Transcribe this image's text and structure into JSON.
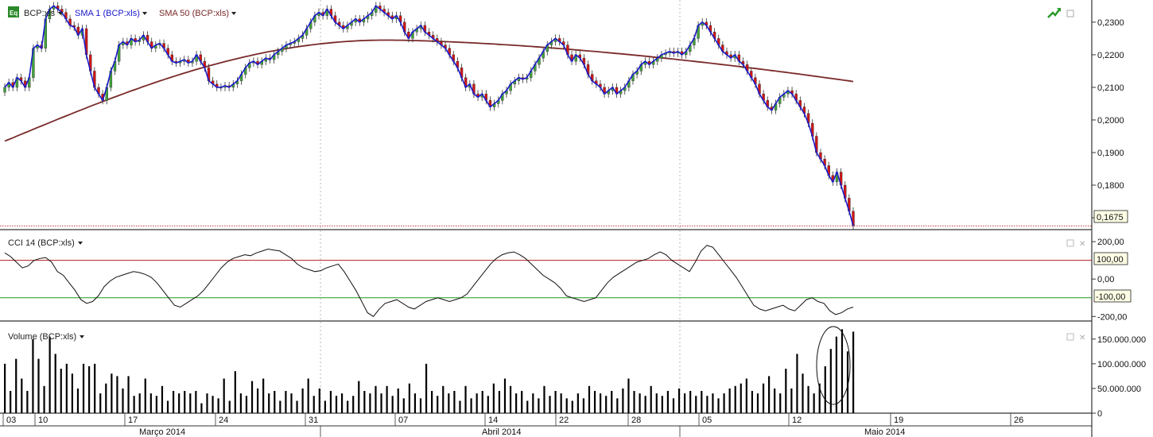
{
  "colors": {
    "up": "#41a33a",
    "down": "#d21414",
    "sma1": "#1a1acc",
    "sma50": "#7a2a2a",
    "cci": "#111111",
    "cci_upper": "#b21e1e",
    "cci_lower": "#1f9a1f",
    "volume": "#000000",
    "last_price_line": "#b21e1e",
    "badge_bg": "#ffffe6"
  },
  "legends": {
    "price_symbol": "BCP:xls",
    "sma1": "SMA 1 (BCP:xls)",
    "sma50": "SMA 50 (BCP:xls)",
    "cci": "CCI 14 (BCP:xls)",
    "volume": "Volume (BCP:xls)",
    "logo": "Eq"
  },
  "badges": {
    "last_price": "0,1675",
    "cci_upper": "100,00",
    "cci_lower": "-100,00"
  },
  "icons": [
    "trend-icon",
    "panel-close-icon",
    "panel-restore-icon",
    "dropdown-arrow-icon"
  ],
  "chart_data": [
    {
      "type": "candlestick",
      "title": "BCP:xls",
      "yticks": [
        "0,2300",
        "0,2200",
        "0,2100",
        "0,2000",
        "0,1900",
        "0,1800",
        "0,1700"
      ],
      "ylim": [
        0.1666,
        0.2368
      ],
      "overlays": [
        "SMA 1 (BCP:xls)",
        "SMA 50 (BCP:xls)"
      ],
      "last_value": 0.1675,
      "sma50_start": 0.1935,
      "sma50_end": 0.2118,
      "candles": [
        [
          0.2085,
          0.21
        ],
        [
          0.21,
          0.2115
        ],
        [
          0.2115,
          0.21
        ],
        [
          0.21,
          0.213
        ],
        [
          0.213,
          0.212
        ],
        [
          0.212,
          0.21
        ],
        [
          0.21,
          0.213
        ],
        [
          0.213,
          0.222
        ],
        [
          0.222,
          0.223
        ],
        [
          0.223,
          0.222
        ],
        [
          0.222,
          0.231
        ],
        [
          0.231,
          0.234
        ],
        [
          0.234,
          0.235
        ],
        [
          0.235,
          0.234
        ],
        [
          0.234,
          0.233
        ],
        [
          0.233,
          0.231
        ],
        [
          0.231,
          0.229
        ],
        [
          0.229,
          0.2285
        ],
        [
          0.2285,
          0.226
        ],
        [
          0.226,
          0.228
        ],
        [
          0.228,
          0.22
        ],
        [
          0.22,
          0.215
        ],
        [
          0.215,
          0.21
        ],
        [
          0.21,
          0.208
        ],
        [
          0.208,
          0.206
        ],
        [
          0.206,
          0.21
        ],
        [
          0.21,
          0.215
        ],
        [
          0.215,
          0.218
        ],
        [
          0.218,
          0.223
        ],
        [
          0.223,
          0.224
        ],
        [
          0.224,
          0.223
        ],
        [
          0.223,
          0.225
        ],
        [
          0.225,
          0.224
        ],
        [
          0.224,
          0.2245
        ],
        [
          0.2245,
          0.226
        ],
        [
          0.226,
          0.224
        ],
        [
          0.224,
          0.222
        ],
        [
          0.222,
          0.223
        ],
        [
          0.223,
          0.2235
        ],
        [
          0.2235,
          0.222
        ],
        [
          0.222,
          0.22
        ],
        [
          0.22,
          0.218
        ],
        [
          0.218,
          0.2175
        ],
        [
          0.2175,
          0.218
        ],
        [
          0.218,
          0.2185
        ],
        [
          0.2185,
          0.2175
        ],
        [
          0.2175,
          0.218
        ],
        [
          0.218,
          0.22
        ],
        [
          0.22,
          0.218
        ],
        [
          0.218,
          0.216
        ],
        [
          0.216,
          0.212
        ],
        [
          0.212,
          0.211
        ],
        [
          0.211,
          0.21
        ],
        [
          0.21,
          0.21
        ],
        [
          0.21,
          0.2105
        ],
        [
          0.2105,
          0.21
        ],
        [
          0.21,
          0.211
        ],
        [
          0.211,
          0.212
        ],
        [
          0.212,
          0.214
        ],
        [
          0.214,
          0.216
        ],
        [
          0.216,
          0.2175
        ],
        [
          0.2175,
          0.218
        ],
        [
          0.218,
          0.217
        ],
        [
          0.217,
          0.218
        ],
        [
          0.218,
          0.219
        ],
        [
          0.219,
          0.2185
        ],
        [
          0.2185,
          0.22
        ],
        [
          0.22,
          0.221
        ],
        [
          0.221,
          0.222
        ],
        [
          0.222,
          0.223
        ],
        [
          0.223,
          0.2235
        ],
        [
          0.2235,
          0.224
        ],
        [
          0.224,
          0.225
        ],
        [
          0.225,
          0.226
        ],
        [
          0.226,
          0.228
        ],
        [
          0.228,
          0.23
        ],
        [
          0.23,
          0.232
        ],
        [
          0.232,
          0.233
        ],
        [
          0.233,
          0.232
        ],
        [
          0.232,
          0.234
        ],
        [
          0.234,
          0.232
        ],
        [
          0.232,
          0.23
        ],
        [
          0.23,
          0.229
        ],
        [
          0.229,
          0.228
        ],
        [
          0.228,
          0.229
        ],
        [
          0.229,
          0.23
        ],
        [
          0.23,
          0.231
        ],
        [
          0.231,
          0.23
        ],
        [
          0.23,
          0.231
        ],
        [
          0.231,
          0.232
        ],
        [
          0.232,
          0.233
        ],
        [
          0.233,
          0.235
        ],
        [
          0.235,
          0.234
        ],
        [
          0.234,
          0.233
        ],
        [
          0.233,
          0.232
        ],
        [
          0.232,
          0.231
        ],
        [
          0.231,
          0.232
        ],
        [
          0.232,
          0.23
        ],
        [
          0.23,
          0.227
        ],
        [
          0.227,
          0.225
        ],
        [
          0.225,
          0.227
        ],
        [
          0.227,
          0.228
        ],
        [
          0.228,
          0.229
        ],
        [
          0.229,
          0.227
        ],
        [
          0.227,
          0.226
        ],
        [
          0.226,
          0.225
        ],
        [
          0.225,
          0.224
        ],
        [
          0.224,
          0.223
        ],
        [
          0.223,
          0.222
        ],
        [
          0.222,
          0.22
        ],
        [
          0.22,
          0.218
        ],
        [
          0.218,
          0.216
        ],
        [
          0.216,
          0.213
        ],
        [
          0.213,
          0.21
        ],
        [
          0.21,
          0.211
        ],
        [
          0.211,
          0.208
        ],
        [
          0.208,
          0.207
        ],
        [
          0.207,
          0.208
        ],
        [
          0.208,
          0.206
        ],
        [
          0.206,
          0.204
        ],
        [
          0.204,
          0.205
        ],
        [
          0.205,
          0.206
        ],
        [
          0.206,
          0.208
        ],
        [
          0.208,
          0.209
        ],
        [
          0.209,
          0.211
        ],
        [
          0.211,
          0.212
        ],
        [
          0.212,
          0.213
        ],
        [
          0.213,
          0.2125
        ],
        [
          0.2125,
          0.213
        ],
        [
          0.213,
          0.215
        ],
        [
          0.215,
          0.217
        ],
        [
          0.217,
          0.219
        ],
        [
          0.219,
          0.221
        ],
        [
          0.221,
          0.223
        ],
        [
          0.223,
          0.224
        ],
        [
          0.224,
          0.225
        ],
        [
          0.225,
          0.224
        ],
        [
          0.224,
          0.223
        ],
        [
          0.223,
          0.22
        ],
        [
          0.22,
          0.218
        ],
        [
          0.218,
          0.22
        ],
        [
          0.22,
          0.219
        ],
        [
          0.219,
          0.217
        ],
        [
          0.217,
          0.214
        ],
        [
          0.214,
          0.212
        ],
        [
          0.212,
          0.211
        ],
        [
          0.211,
          0.21
        ],
        [
          0.21,
          0.208
        ],
        [
          0.208,
          0.209
        ],
        [
          0.209,
          0.21
        ],
        [
          0.21,
          0.208
        ],
        [
          0.208,
          0.209
        ],
        [
          0.209,
          0.21
        ],
        [
          0.21,
          0.212
        ],
        [
          0.212,
          0.214
        ],
        [
          0.214,
          0.215
        ],
        [
          0.215,
          0.217
        ],
        [
          0.217,
          0.218
        ],
        [
          0.218,
          0.217
        ],
        [
          0.217,
          0.218
        ],
        [
          0.218,
          0.219
        ],
        [
          0.219,
          0.22
        ],
        [
          0.22,
          0.2205
        ],
        [
          0.2205,
          0.221
        ],
        [
          0.221,
          0.2205
        ],
        [
          0.2205,
          0.221
        ],
        [
          0.221,
          0.22
        ],
        [
          0.22,
          0.221
        ],
        [
          0.221,
          0.223
        ],
        [
          0.223,
          0.225
        ],
        [
          0.225,
          0.229
        ],
        [
          0.229,
          0.23
        ],
        [
          0.23,
          0.229
        ],
        [
          0.229,
          0.227
        ],
        [
          0.227,
          0.225
        ],
        [
          0.225,
          0.223
        ],
        [
          0.223,
          0.221
        ],
        [
          0.221,
          0.22
        ],
        [
          0.22,
          0.219
        ],
        [
          0.219,
          0.22
        ],
        [
          0.22,
          0.218
        ],
        [
          0.218,
          0.217
        ],
        [
          0.217,
          0.215
        ],
        [
          0.215,
          0.213
        ],
        [
          0.213,
          0.211
        ],
        [
          0.211,
          0.208
        ],
        [
          0.208,
          0.206
        ],
        [
          0.206,
          0.204
        ],
        [
          0.204,
          0.203
        ],
        [
          0.203,
          0.205
        ],
        [
          0.205,
          0.207
        ],
        [
          0.207,
          0.208
        ],
        [
          0.208,
          0.209
        ],
        [
          0.209,
          0.208
        ],
        [
          0.208,
          0.206
        ],
        [
          0.206,
          0.204
        ],
        [
          0.204,
          0.202
        ],
        [
          0.202,
          0.199
        ],
        [
          0.199,
          0.195
        ],
        [
          0.195,
          0.19
        ],
        [
          0.19,
          0.188
        ],
        [
          0.188,
          0.186
        ],
        [
          0.186,
          0.183
        ],
        [
          0.183,
          0.181
        ],
        [
          0.181,
          0.184
        ],
        [
          0.184,
          0.18
        ],
        [
          0.18,
          0.176
        ],
        [
          0.176,
          0.172
        ],
        [
          0.172,
          0.1675
        ]
      ]
    },
    {
      "type": "line",
      "title": "CCI 14 (BCP:xls)",
      "yticks": [
        "200,00",
        "0,00",
        "-200,00"
      ],
      "ylim": [
        -220,
        260
      ],
      "levels": [
        100,
        -100
      ],
      "values": [
        140,
        120,
        90,
        60,
        70,
        100,
        110,
        115,
        90,
        40,
        20,
        -20,
        -60,
        -110,
        -130,
        -120,
        -90,
        -40,
        -10,
        10,
        20,
        30,
        40,
        35,
        25,
        10,
        -20,
        -60,
        -100,
        -140,
        -150,
        -130,
        -110,
        -90,
        -60,
        -20,
        20,
        60,
        90,
        110,
        120,
        130,
        125,
        140,
        150,
        160,
        155,
        150,
        130,
        110,
        80,
        60,
        50,
        40,
        45,
        60,
        70,
        80,
        40,
        -10,
        -60,
        -120,
        -180,
        -200,
        -160,
        -130,
        -120,
        -110,
        -130,
        -150,
        -160,
        -140,
        -120,
        -110,
        -100,
        -110,
        -120,
        -110,
        -100,
        -80,
        -40,
        0,
        40,
        80,
        110,
        130,
        140,
        145,
        130,
        110,
        80,
        50,
        20,
        0,
        -20,
        -50,
        -90,
        -100,
        -110,
        -120,
        -110,
        -100,
        -60,
        -20,
        10,
        30,
        50,
        70,
        90,
        100,
        110,
        130,
        145,
        130,
        100,
        80,
        60,
        40,
        90,
        150,
        180,
        170,
        130,
        90,
        50,
        10,
        -40,
        -90,
        -140,
        -160,
        -170,
        -160,
        -150,
        -140,
        -160,
        -170,
        -140,
        -110,
        -100,
        -120,
        -130,
        -170,
        -190,
        -180,
        -160,
        -150
      ],
      "xlabel": "",
      "ylabel": ""
    },
    {
      "type": "bar",
      "title": "Volume (BCP:xls)",
      "yticks": [
        "150.000.000",
        "100.000.000",
        "50.000.000",
        "0"
      ],
      "ylim": [
        0,
        185000000
      ],
      "values": [
        100000000,
        45000000,
        110000000,
        70000000,
        45000000,
        150000000,
        110000000,
        55000000,
        155000000,
        120000000,
        90000000,
        100000000,
        80000000,
        50000000,
        100000000,
        95000000,
        100000000,
        40000000,
        60000000,
        80000000,
        75000000,
        50000000,
        75000000,
        35000000,
        40000000,
        70000000,
        40000000,
        35000000,
        55000000,
        25000000,
        45000000,
        40000000,
        45000000,
        40000000,
        45000000,
        20000000,
        40000000,
        35000000,
        30000000,
        70000000,
        25000000,
        85000000,
        40000000,
        35000000,
        65000000,
        50000000,
        70000000,
        40000000,
        45000000,
        25000000,
        45000000,
        40000000,
        25000000,
        50000000,
        70000000,
        35000000,
        50000000,
        25000000,
        45000000,
        35000000,
        40000000,
        25000000,
        35000000,
        65000000,
        45000000,
        40000000,
        55000000,
        40000000,
        55000000,
        35000000,
        50000000,
        30000000,
        60000000,
        40000000,
        30000000,
        100000000,
        45000000,
        35000000,
        55000000,
        40000000,
        45000000,
        25000000,
        55000000,
        30000000,
        40000000,
        45000000,
        35000000,
        60000000,
        45000000,
        70000000,
        55000000,
        40000000,
        45000000,
        25000000,
        40000000,
        30000000,
        55000000,
        35000000,
        45000000,
        40000000,
        30000000,
        25000000,
        40000000,
        30000000,
        55000000,
        45000000,
        40000000,
        35000000,
        45000000,
        30000000,
        50000000,
        70000000,
        45000000,
        40000000,
        35000000,
        55000000,
        40000000,
        35000000,
        45000000,
        30000000,
        50000000,
        40000000,
        45000000,
        35000000,
        45000000,
        35000000,
        40000000,
        30000000,
        40000000,
        50000000,
        55000000,
        60000000,
        70000000,
        45000000,
        40000000,
        60000000,
        75000000,
        50000000,
        40000000,
        90000000,
        50000000,
        120000000,
        80000000,
        55000000,
        40000000,
        60000000,
        95000000,
        130000000,
        155000000,
        170000000,
        125000000,
        165000000
      ],
      "xlabel": "",
      "ylabel": ""
    }
  ],
  "xaxis": {
    "day_ticks": [
      "03",
      "10",
      "17",
      "24",
      "31",
      "07",
      "14",
      "22",
      "28",
      "05",
      "12",
      "19",
      "26"
    ],
    "month_labels": [
      "Março 2014",
      "Abril 2014",
      "Maio 2014"
    ]
  }
}
